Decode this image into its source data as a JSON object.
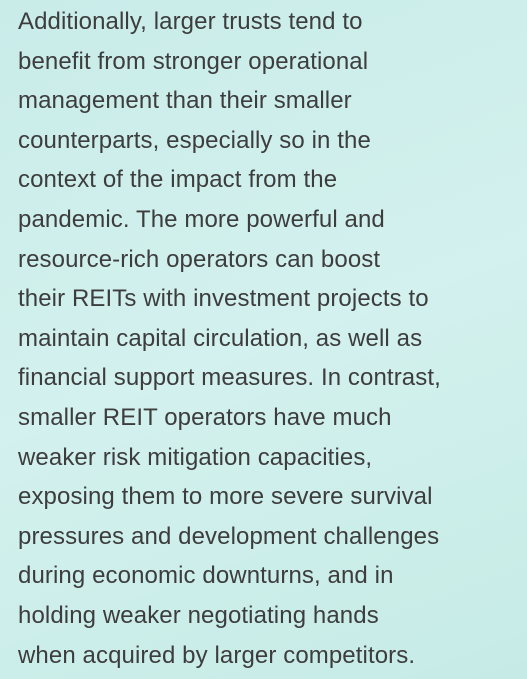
{
  "paragraph": {
    "lines": [
      "Additionally, larger trusts tend to",
      "benefit from stronger operational",
      "management than their smaller",
      "counterparts, especially so in the",
      "context of the impact from the",
      "pandemic. The more powerful and",
      "resource-rich operators can boost",
      "their REITs with investment projects to",
      "maintain capital circulation, as well as",
      "financial support measures. In contrast,",
      "smaller REIT operators have much",
      "weaker risk mitigation capacities,",
      "exposing them to more severe survival",
      "pressures and development challenges",
      "during economic downturns, and in",
      "holding weaker negotiating hands",
      "when acquired by larger competitors."
    ]
  }
}
